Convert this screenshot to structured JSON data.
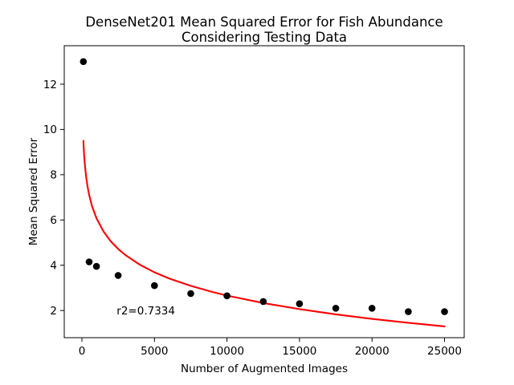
{
  "figure": {
    "background": "#ffffff"
  },
  "chart_data": {
    "type": "scatter",
    "title": "DenseNet201 Mean Squared Error for Fish Abundance Considering Testing Data",
    "title_lines": [
      "DenseNet201 Mean Squared Error for Fish Abundance",
      "Considering Testing Data"
    ],
    "xlabel": "Number of Augmented Images",
    "ylabel": "Mean Squared Error",
    "xlim": [
      -1218,
      26356
    ],
    "ylim": [
      0.8,
      13.7
    ],
    "x_ticks": [
      0,
      5000,
      10000,
      15000,
      20000,
      25000
    ],
    "y_ticks": [
      2,
      4,
      6,
      8,
      10,
      12
    ],
    "grid": false,
    "legend": "none",
    "series": [
      {
        "name": "observed-mse-points",
        "kind": "scatter",
        "marker": "circle",
        "color": "#000000",
        "points": [
          [
            100,
            13.0
          ],
          [
            500,
            4.15
          ],
          [
            1000,
            3.95
          ],
          [
            2500,
            3.55
          ],
          [
            5000,
            3.1
          ],
          [
            7500,
            2.75
          ],
          [
            10000,
            2.65
          ],
          [
            12500,
            2.4
          ],
          [
            15000,
            2.3
          ],
          [
            17500,
            2.1
          ],
          [
            20000,
            2.1
          ],
          [
            22500,
            1.95
          ],
          [
            25000,
            1.95
          ]
        ]
      },
      {
        "name": "log-fit-curve",
        "kind": "line",
        "color": "#ff0000",
        "fit": "y = 16.34 - 1.485*ln(x)",
        "points": [
          [
            100,
            9.5
          ],
          [
            150,
            8.9
          ],
          [
            200,
            8.47
          ],
          [
            300,
            7.87
          ],
          [
            400,
            7.44
          ],
          [
            500,
            7.11
          ],
          [
            700,
            6.61
          ],
          [
            1000,
            6.08
          ],
          [
            1500,
            5.48
          ],
          [
            2000,
            5.05
          ],
          [
            2500,
            4.72
          ],
          [
            3000,
            4.45
          ],
          [
            4000,
            4.02
          ],
          [
            5000,
            3.69
          ],
          [
            6000,
            3.42
          ],
          [
            7500,
            3.09
          ],
          [
            9000,
            2.82
          ],
          [
            10000,
            2.66
          ],
          [
            12500,
            2.33
          ],
          [
            15000,
            2.06
          ],
          [
            17500,
            1.83
          ],
          [
            20000,
            1.63
          ],
          [
            22500,
            1.46
          ],
          [
            25000,
            1.3
          ]
        ]
      }
    ],
    "annotation": {
      "text": "r2=0.7334",
      "x": 2400,
      "y": 1.82
    }
  },
  "colors": {
    "scatter": "#000000",
    "fit_line": "#ff0000",
    "text": "#000000",
    "spine": "#000000",
    "background": "#ffffff"
  }
}
